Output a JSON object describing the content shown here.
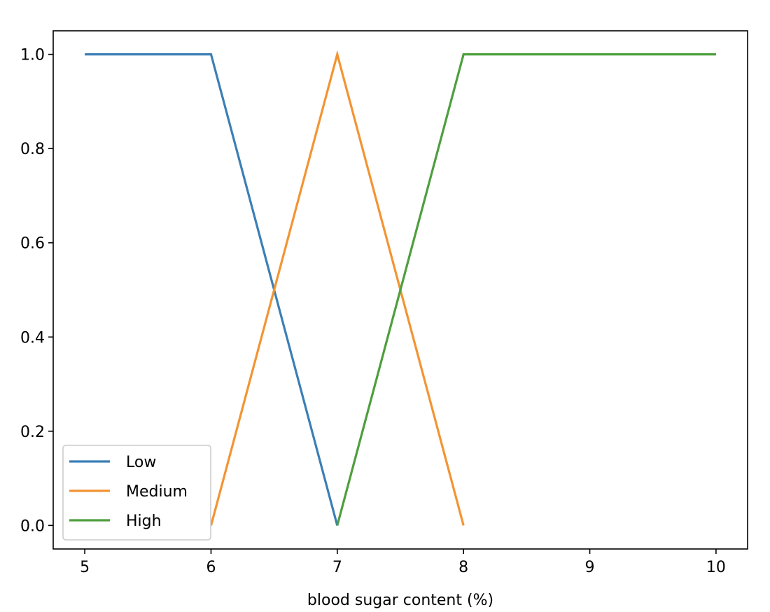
{
  "chart_data": {
    "type": "line",
    "title": "",
    "xlabel": "blood sugar content (%)",
    "ylabel": "",
    "xlim": [
      4.75,
      10.25
    ],
    "ylim": [
      -0.05,
      1.05
    ],
    "xticks": [
      5,
      6,
      7,
      8,
      9,
      10
    ],
    "xtick_labels": [
      "5",
      "6",
      "7",
      "8",
      "9",
      "10"
    ],
    "yticks": [
      0.0,
      0.2,
      0.4,
      0.6,
      0.8,
      1.0
    ],
    "ytick_labels": [
      "0.0",
      "0.2",
      "0.4",
      "0.6",
      "0.8",
      "1.0"
    ],
    "grid": false,
    "legend_position": "lower-left",
    "series": [
      {
        "name": "Low",
        "color": "#3b7fb6",
        "x": [
          5,
          6,
          7
        ],
        "y": [
          1.0,
          1.0,
          0.0
        ]
      },
      {
        "name": "Medium",
        "color": "#f39433",
        "x": [
          6,
          7,
          8
        ],
        "y": [
          0.0,
          1.0,
          0.0
        ]
      },
      {
        "name": "High",
        "color": "#4e9f3d",
        "x": [
          7,
          8,
          10
        ],
        "y": [
          0.0,
          1.0,
          1.0
        ]
      }
    ]
  }
}
